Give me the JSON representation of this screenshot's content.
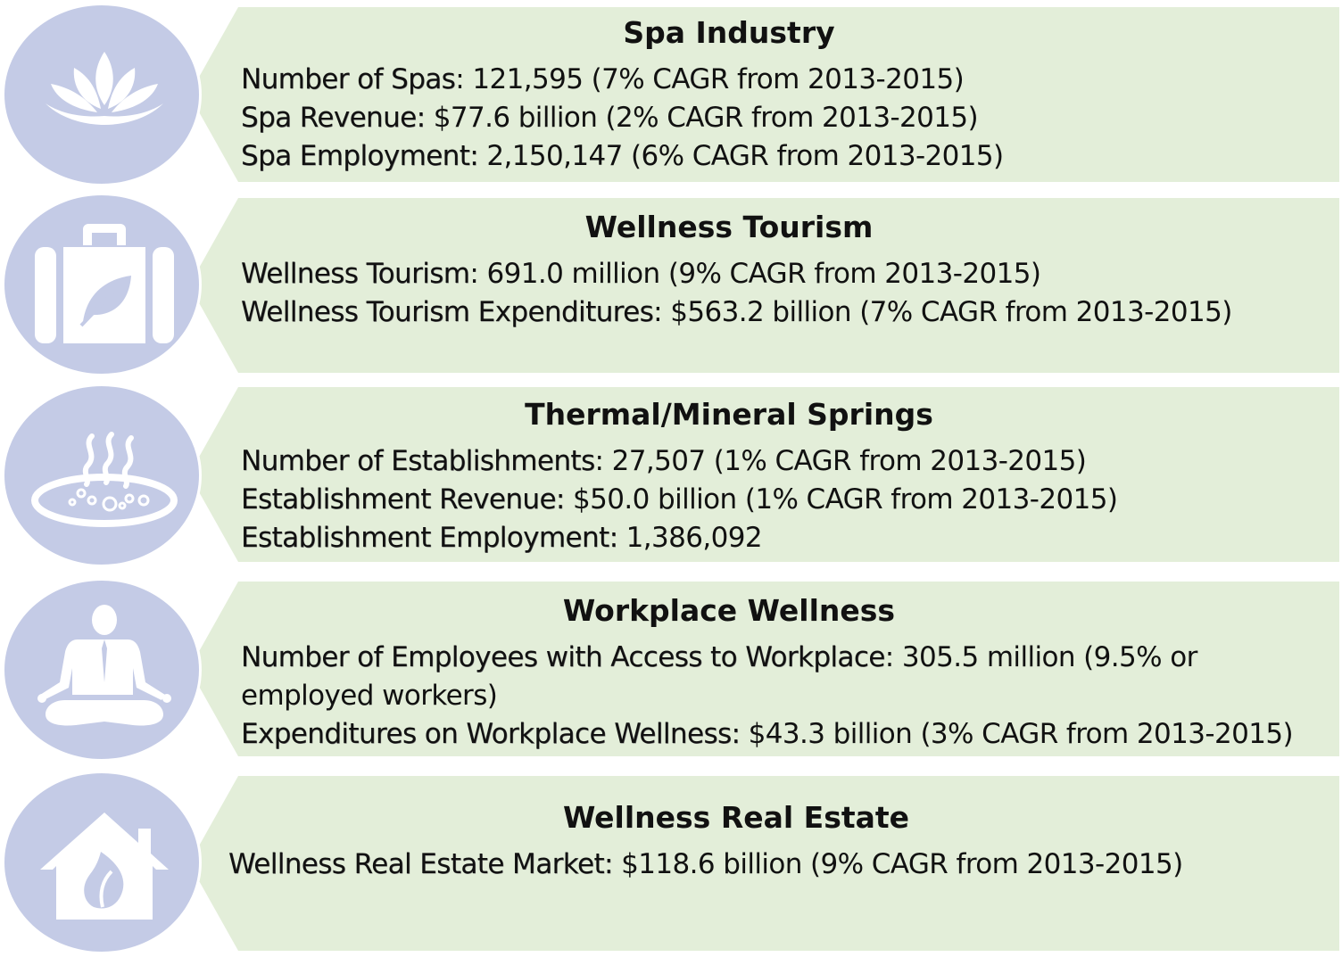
{
  "colors": {
    "panel": "#e3eed9",
    "circle": "#c4cbe6",
    "icon": "#ffffff",
    "text": "#111111"
  },
  "sections": [
    {
      "icon": "lotus-icon",
      "title": "Spa Industry",
      "lines": [
        {
          "label": "Number of Spas",
          "value": ": 121,595 (7% CAGR from 2013-2015)"
        },
        {
          "label": "Spa Revenue:",
          "value": " $77.6 billion (2% CAGR from 2013-2015)"
        },
        {
          "label": "Spa Employment:",
          "value": " 2,150,147 (6% CAGR from 2013-2015)"
        }
      ]
    },
    {
      "icon": "suitcase-leaf-icon",
      "title": "Wellness Tourism",
      "lines": [
        {
          "label": "Wellness Tourism",
          "value": ": 691.0 million (9% CAGR from 2013-2015)"
        },
        {
          "label": "Wellness Tourism Expenditures",
          "value": ": $563.2 billion (7% CAGR from 2013-2015)"
        }
      ]
    },
    {
      "icon": "hot-spring-icon",
      "title": "Thermal/Mineral Springs",
      "lines": [
        {
          "label": "Number of Establishments",
          "value": ": 27,507 (1% CAGR from 2013-2015)"
        },
        {
          "label": "Establishment Revenue:",
          "value": " $50.0 billion (1% CAGR from 2013-2015)"
        },
        {
          "label": "Establishment Employment:",
          "value": " 1,386,092"
        }
      ]
    },
    {
      "icon": "meditating-businessman-icon",
      "title": "Workplace Wellness",
      "lines": [
        {
          "label": "Number of Employees with Access to Workplace",
          "value": ": 305.5 million (9.5% or employed workers)"
        },
        {
          "label": "Expenditures on Workplace Wellness:",
          "value": " $43.3 billion (3% CAGR from 2013-2015)"
        }
      ]
    },
    {
      "icon": "house-leaf-icon",
      "title": "Wellness Real Estate",
      "lines": [
        {
          "label": "Wellness Real Estate Market:",
          "value": " $118.6 billion (9% CAGR from 2013-2015)"
        }
      ]
    }
  ]
}
